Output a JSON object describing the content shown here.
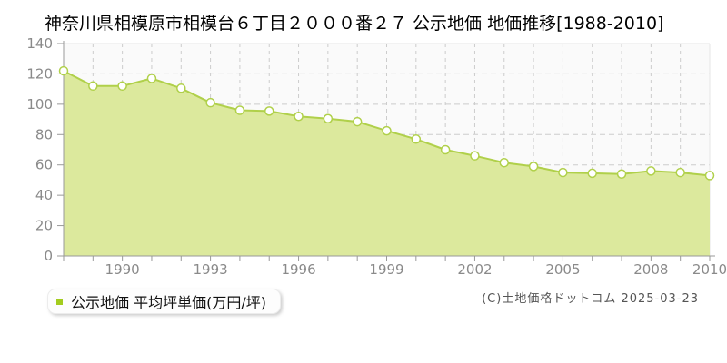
{
  "title": "神奈川県相模原市相模台６丁目２０００番２７ 公示地価 地価推移[1988-2010]",
  "legend": {
    "label": "公示地価 平均坪単価(万円/坪)",
    "marker_color": "#a3cc1e"
  },
  "footer": {
    "copyright": "(C)土地価格ドットコム 2025-03-23"
  },
  "chart_data": {
    "type": "area",
    "title": "神奈川県相模原市相模台６丁目２０００番２７ 公示地価 地価推移[1988-2010]",
    "x": [
      1988,
      1989,
      1990,
      1991,
      1992,
      1993,
      1994,
      1995,
      1996,
      1997,
      1998,
      1999,
      2000,
      2001,
      2002,
      2003,
      2004,
      2005,
      2006,
      2007,
      2008,
      2009,
      2010
    ],
    "series": [
      {
        "name": "公示地価 平均坪単価(万円/坪)",
        "values": [
          122,
          112,
          112,
          117,
          110.5,
          101,
          96,
          95.5,
          92,
          90.5,
          88.5,
          82.5,
          77,
          70,
          66,
          61.5,
          59,
          55,
          54.5,
          54,
          56,
          55,
          53
        ]
      }
    ],
    "xlabel": "",
    "ylabel": "",
    "ylim": [
      0,
      140
    ],
    "y_ticks": [
      0,
      20,
      40,
      60,
      80,
      100,
      120,
      140
    ],
    "x_tick_labels": [
      1990,
      1993,
      1996,
      1999,
      2002,
      2005,
      2008,
      2010
    ],
    "grid": true,
    "grid_style": "dashed",
    "legend_position": "bottom-left",
    "colors": {
      "line": "#b0d04a",
      "fill": "#dce99d",
      "marker_fill": "#ffffff",
      "marker_stroke": "#b0d04a",
      "plot_background": "#fafafa",
      "plot_border": "#e5e5e5",
      "gridline": "#cccccc",
      "axis": "#999999",
      "tick_text": "#8a8a8a"
    }
  }
}
